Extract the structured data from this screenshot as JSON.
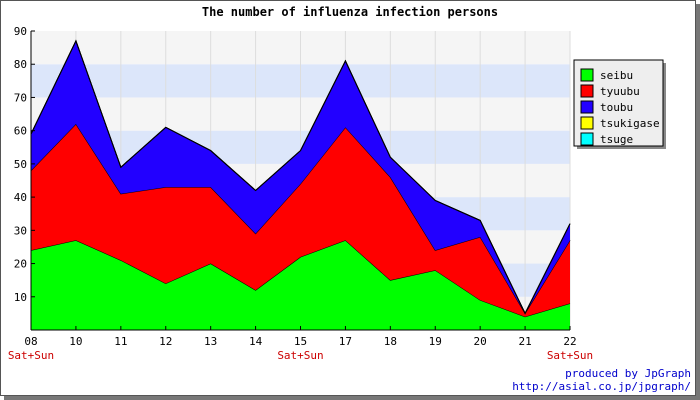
{
  "chart_data": {
    "type": "area",
    "stacked": true,
    "title": "The number of influenza infection persons",
    "categories": [
      "08",
      "10",
      "11",
      "12",
      "13",
      "14",
      "15",
      "17",
      "18",
      "19",
      "20",
      "21",
      "22"
    ],
    "weekend_labels": [
      "Sat+Sun",
      "",
      "",
      "",
      "",
      "",
      "Sat+Sun",
      "",
      "",
      "",
      "",
      "",
      "Sat+Sun"
    ],
    "ylim": [
      0,
      90
    ],
    "yticks": [
      10,
      20,
      30,
      40,
      50,
      60,
      70,
      80,
      90
    ],
    "grid": true,
    "legend_position": "right",
    "series": [
      {
        "name": "seibu",
        "color": "#00ff00",
        "values": [
          24,
          27,
          21,
          14,
          20,
          12,
          22,
          27,
          15,
          18,
          9,
          4,
          8
        ]
      },
      {
        "name": "tyuubu",
        "color": "#ff0000",
        "values": [
          24,
          35,
          20,
          29,
          23,
          17,
          22,
          34,
          31,
          6,
          19,
          1,
          19
        ]
      },
      {
        "name": "toubu",
        "color": "#2200ff",
        "values": [
          11,
          25,
          8,
          18,
          11,
          13,
          10,
          20,
          6,
          15,
          5,
          0,
          5
        ]
      },
      {
        "name": "tsukigase",
        "color": "#ffff00",
        "values": [
          0,
          0,
          0,
          0,
          0,
          0,
          0,
          0,
          0,
          0,
          0,
          0,
          0
        ]
      },
      {
        "name": "tsuge",
        "color": "#00ffff",
        "values": [
          0,
          0,
          0,
          0,
          0,
          0,
          0,
          0,
          0,
          0,
          0,
          0,
          0
        ]
      }
    ]
  },
  "credit": {
    "line1": "produced by JpGraph",
    "line2": "http://asial.co.jp/jpgraph/"
  }
}
